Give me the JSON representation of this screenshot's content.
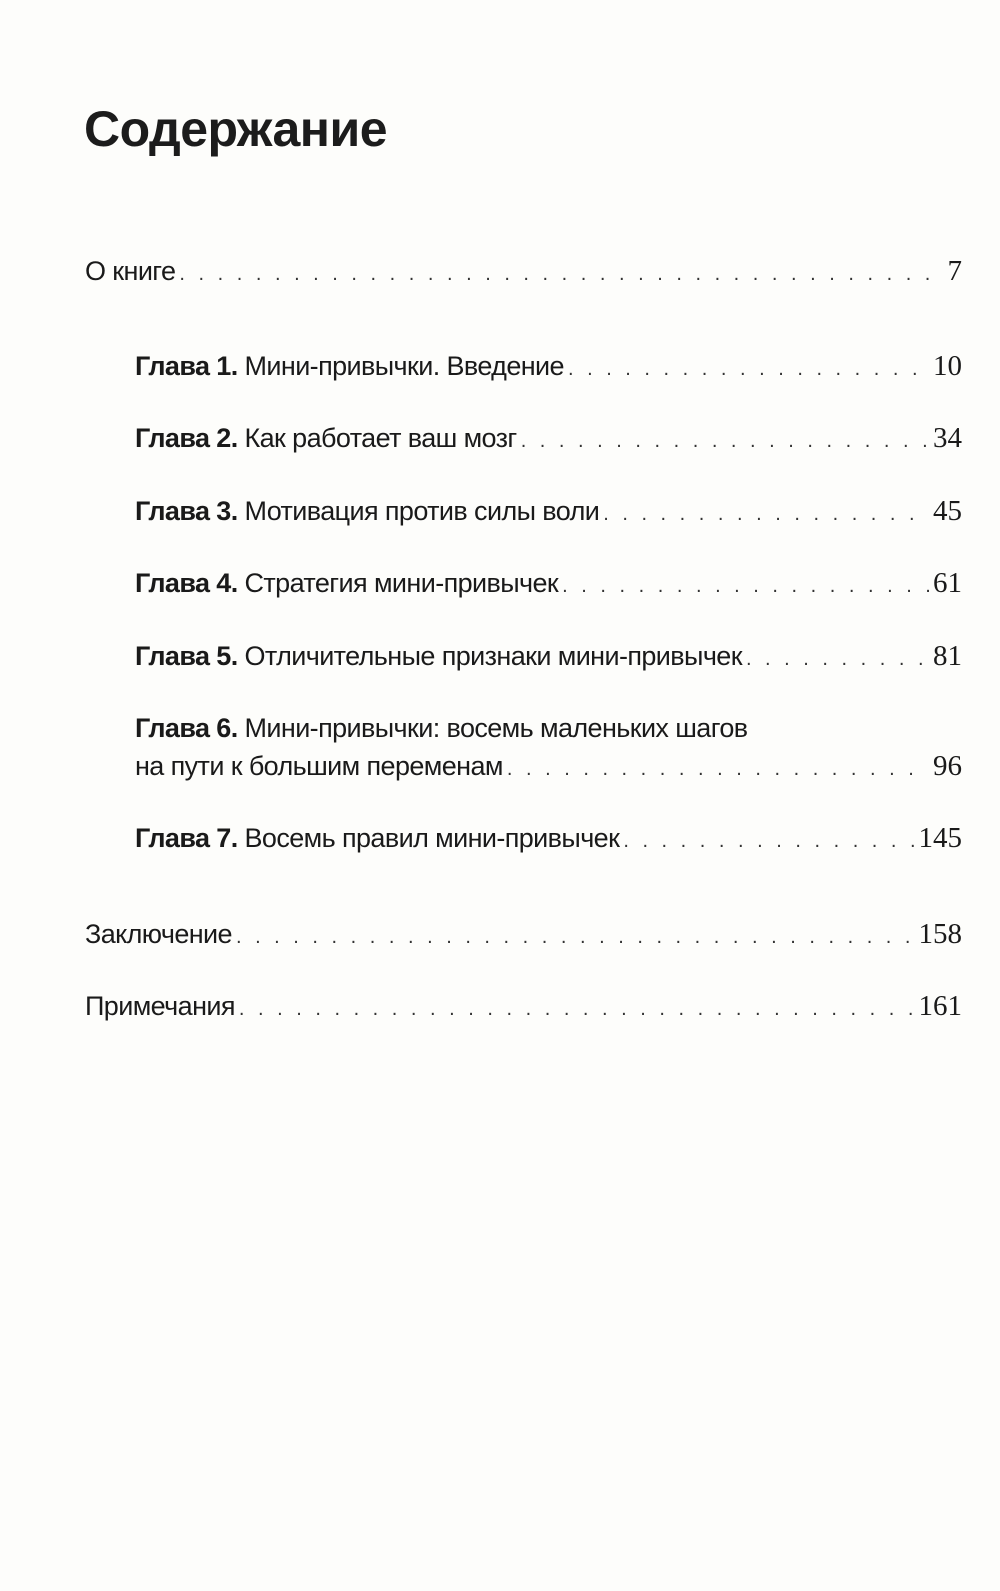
{
  "title": "Содержание",
  "toc": [
    {
      "chapter": "",
      "text": "О книге",
      "page": "7"
    },
    {
      "chapter": "Глава 1.",
      "text": "Мини-привычки. Введение",
      "page": "10"
    },
    {
      "chapter": "Глава 2.",
      "text": "Как работает ваш мозг",
      "page": "34"
    },
    {
      "chapter": "Глава 3.",
      "text": "Мотивация против силы воли",
      "page": "45"
    },
    {
      "chapter": "Глава 4.",
      "text": "Стратегия мини-привычек",
      "page": "61"
    },
    {
      "chapter": "Глава 5.",
      "text": "Отличительные признаки мини-привычек",
      "page": "81"
    },
    {
      "chapter": "Глава 6.",
      "text": "Мини-привычки: восемь маленьких шагов",
      "text2": "на пути к большим переменам",
      "page": "96"
    },
    {
      "chapter": "Глава 7.",
      "text": "Восемь правил мини-привычек",
      "page": "145"
    },
    {
      "chapter": "",
      "text": "Заключение",
      "page": "158"
    },
    {
      "chapter": "",
      "text": "Примечания",
      "page": "161"
    }
  ]
}
